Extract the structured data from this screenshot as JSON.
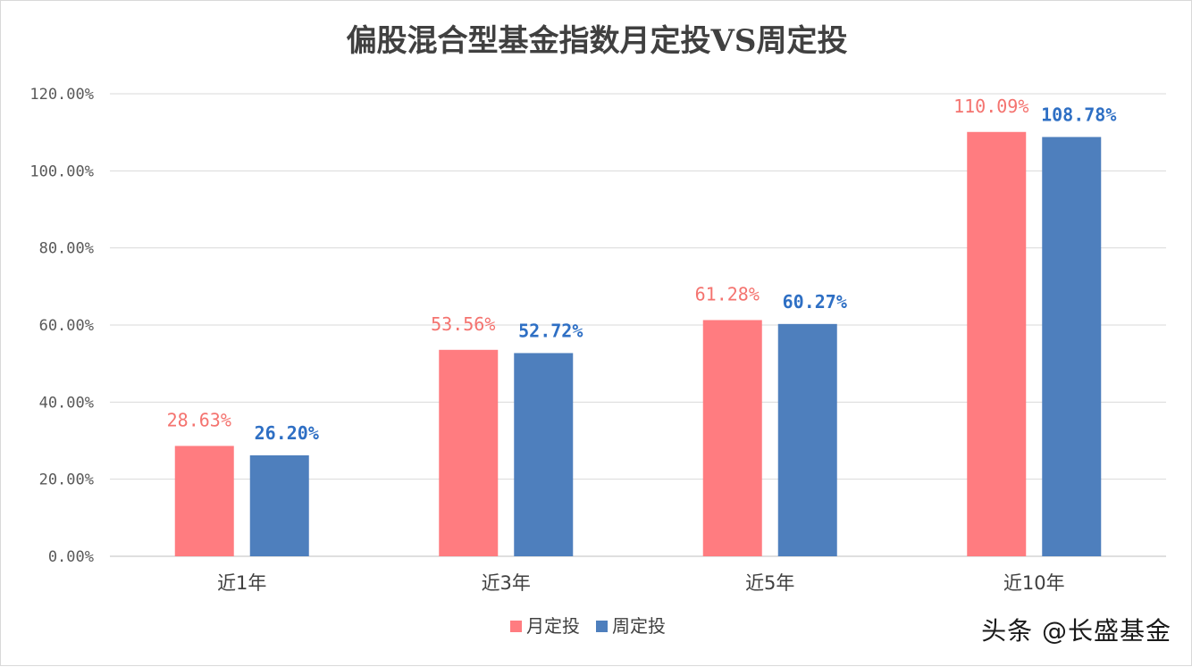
{
  "watermark": "头条 @长盛基金",
  "chart_data": {
    "type": "bar",
    "title": "偏股混合型基金指数月定投VS周定投",
    "categories": [
      "近1年",
      "近3年",
      "近5年",
      "近10年"
    ],
    "ylim": [
      0,
      120
    ],
    "yticks": [
      0,
      20,
      40,
      60,
      80,
      100,
      120
    ],
    "ytick_labels": [
      "0.00%",
      "20.00%",
      "40.00%",
      "60.00%",
      "80.00%",
      "100.00%",
      "120.00%"
    ],
    "grid": true,
    "legend_position": "bottom",
    "series": [
      {
        "name": "月定投",
        "color": "#ff7c80",
        "label_color": "#f4736f",
        "values": [
          28.63,
          53.56,
          61.28,
          110.09
        ],
        "data_labels": [
          "28.63%",
          "53.56%",
          "61.28%",
          "110.09%"
        ]
      },
      {
        "name": "周定投",
        "color": "#4e7fbd",
        "label_color": "#2e6fc4",
        "values": [
          26.2,
          52.72,
          60.27,
          108.78
        ],
        "data_labels": [
          "26.20%",
          "52.72%",
          "60.27%",
          "108.78%"
        ]
      }
    ]
  }
}
